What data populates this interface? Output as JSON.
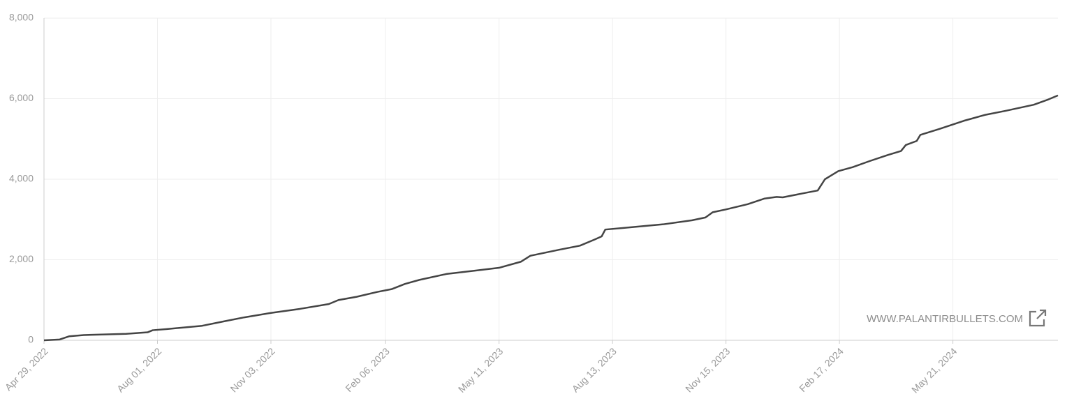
{
  "chart_data": {
    "type": "line",
    "x": [
      "2022-04-29",
      "2022-05-12",
      "2022-05-20",
      "2022-06-01",
      "2022-07-06",
      "2022-07-24",
      "2022-07-28",
      "2022-08-09",
      "2022-09-07",
      "2022-09-25",
      "2022-10-12",
      "2022-11-03",
      "2022-11-27",
      "2022-12-21",
      "2022-12-29",
      "2023-01-13",
      "2023-01-30",
      "2023-02-11",
      "2023-02-22",
      "2023-03-06",
      "2023-03-29",
      "2023-04-21",
      "2023-05-11",
      "2023-05-29",
      "2023-06-06",
      "2023-06-30",
      "2023-07-17",
      "2023-07-29",
      "2023-08-04",
      "2023-08-07",
      "2023-08-26",
      "2023-09-24",
      "2023-10-18",
      "2023-10-29",
      "2023-11-04",
      "2023-11-15",
      "2023-12-03",
      "2023-12-17",
      "2023-12-27",
      "2024-01-01",
      "2024-01-18",
      "2024-01-30",
      "2024-02-05",
      "2024-02-16",
      "2024-02-28",
      "2024-03-13",
      "2024-03-28",
      "2024-04-08",
      "2024-04-12",
      "2024-04-21",
      "2024-04-24",
      "2024-05-10",
      "2024-05-20",
      "2024-05-30",
      "2024-06-17",
      "2024-07-04",
      "2024-07-27",
      "2024-08-08",
      "2024-08-16"
    ],
    "series": [
      {
        "color": "#444444",
        "values": [
          0,
          20,
          100,
          130,
          160,
          200,
          250,
          280,
          360,
          470,
          570,
          680,
          780,
          900,
          1000,
          1080,
          1200,
          1270,
          1400,
          1500,
          1650,
          1730,
          1800,
          1950,
          2100,
          2250,
          2350,
          2500,
          2580,
          2750,
          2800,
          2880,
          2980,
          3050,
          3180,
          3250,
          3380,
          3520,
          3560,
          3550,
          3650,
          3720,
          4000,
          4200,
          4300,
          4450,
          4600,
          4700,
          4850,
          4950,
          5100,
          5250,
          5350,
          5450,
          5600,
          5700,
          5850,
          5980,
          6080
        ]
      }
    ],
    "xlim": [
      "2022-04-29",
      "2024-08-16"
    ],
    "xticks": [
      {
        "value": "2022-04-29",
        "label": "Apr 29, 2022"
      },
      {
        "value": "2022-08-01",
        "label": "Aug 01, 2022"
      },
      {
        "value": "2022-11-03",
        "label": "Nov 03, 2022"
      },
      {
        "value": "2023-02-06",
        "label": "Feb 06, 2023"
      },
      {
        "value": "2023-05-11",
        "label": "May 11, 2023"
      },
      {
        "value": "2023-08-13",
        "label": "Aug 13, 2023"
      },
      {
        "value": "2023-11-15",
        "label": "Nov 15, 2023"
      },
      {
        "value": "2024-02-17",
        "label": "Feb 17, 2024"
      },
      {
        "value": "2024-05-21",
        "label": "May 21, 2024"
      }
    ],
    "ylim": [
      0,
      8000
    ],
    "yticks": [
      0,
      {
        "value": 2000,
        "label": "2,000"
      },
      {
        "value": 4000,
        "label": "4,000"
      },
      {
        "value": 6000,
        "label": "6,000"
      },
      {
        "value": 8000,
        "label": "8,000"
      }
    ],
    "grid": true,
    "watermark": "WWW.PALANTIRBULLETS.COM"
  }
}
